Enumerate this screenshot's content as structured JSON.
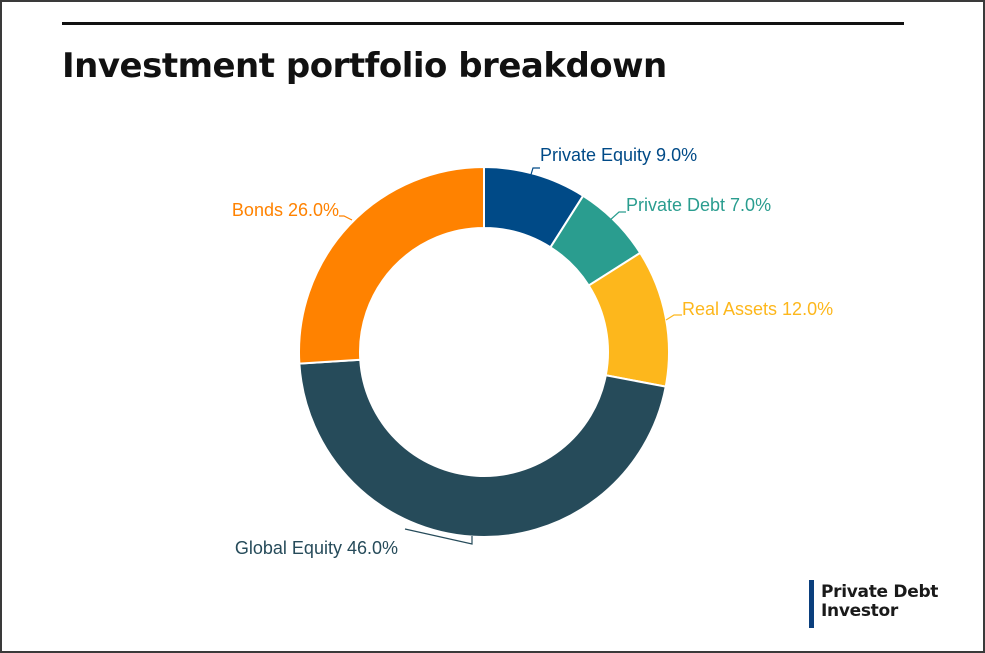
{
  "title": "Investment portfolio breakdown",
  "logo": {
    "line1": "Private Debt",
    "line2": "Investor",
    "accent_color": "#0b3f7d"
  },
  "chart_data": {
    "type": "pie",
    "variant": "donut",
    "title": "Investment portfolio breakdown",
    "slices": [
      {
        "name": "Private Equity",
        "value": 9.0,
        "label": "Private Equity 9.0%",
        "color": "#004a87"
      },
      {
        "name": "Private Debt",
        "value": 7.0,
        "label": "Private Debt 7.0%",
        "color": "#2a9d8f"
      },
      {
        "name": "Real Assets",
        "value": 12.0,
        "label": "Real Assets 12.0%",
        "color": "#fdb71c"
      },
      {
        "name": "Global Equity",
        "value": 46.0,
        "label": "Global Equity 46.0%",
        "color": "#264b5a"
      },
      {
        "name": "Bonds",
        "value": 26.0,
        "label": "Bonds 26.0%",
        "color": "#ff8200"
      }
    ],
    "unit": "%",
    "start_angle": "12 o'clock",
    "direction": "clockwise",
    "legend": "none (labels on slices with leader lines)"
  }
}
